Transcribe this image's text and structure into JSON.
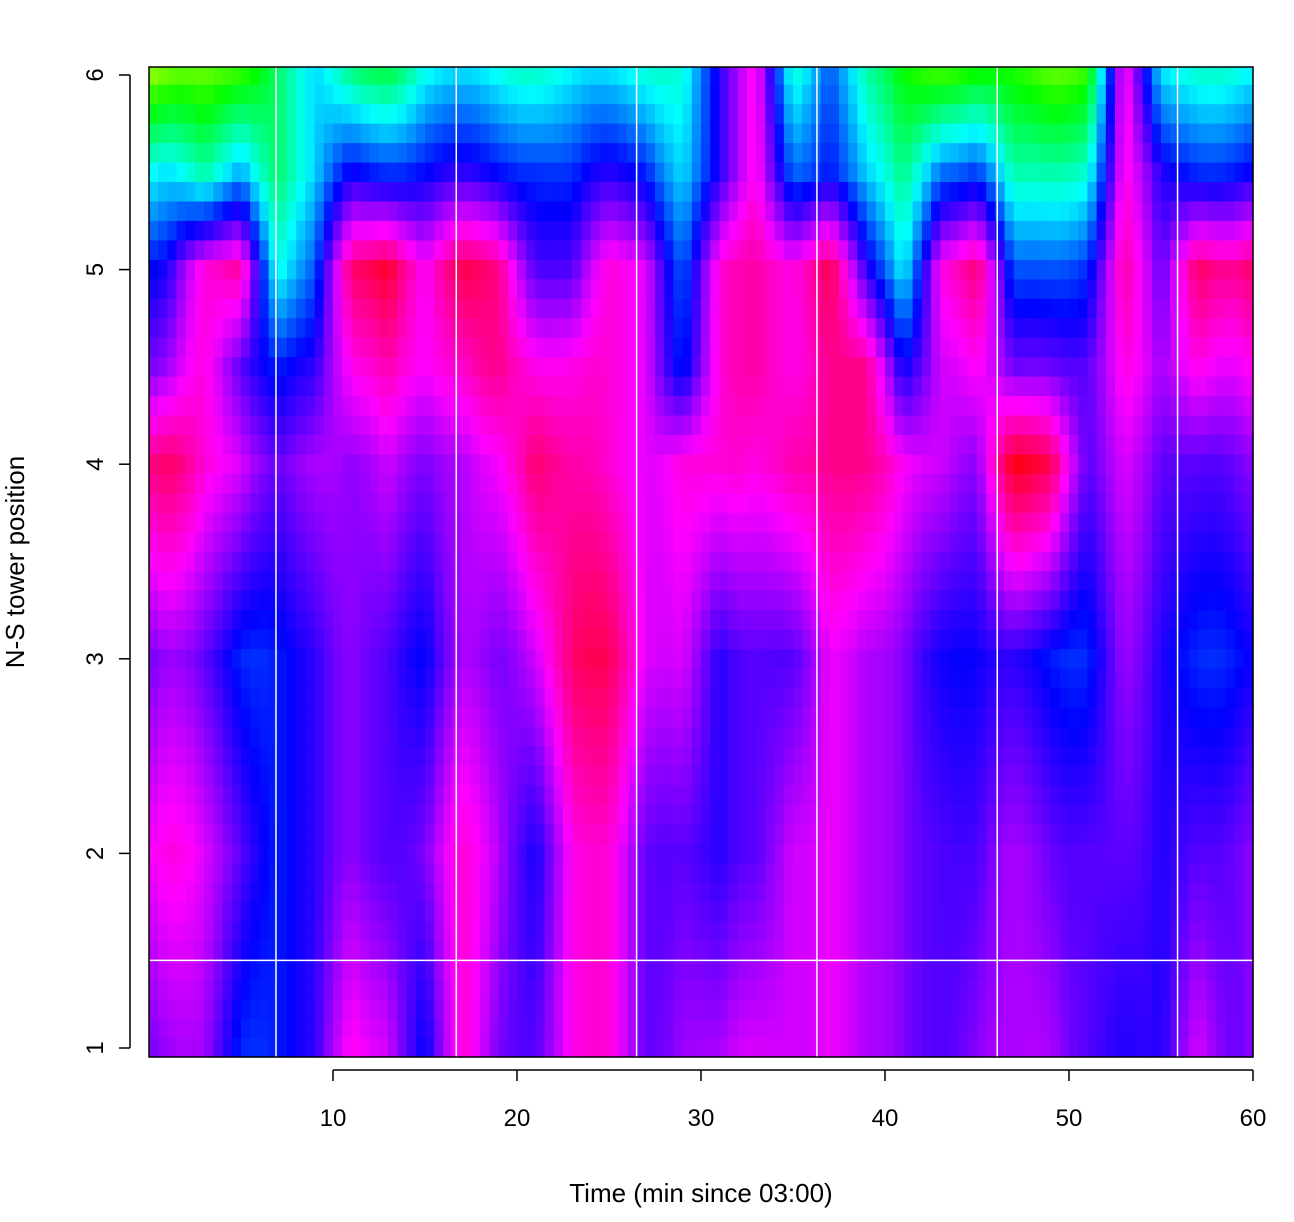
{
  "chart_data": {
    "type": "heatmap",
    "title": "",
    "xlabel": "Time (min since 03:00)",
    "ylabel": "N-S tower position",
    "xlim": [
      0,
      60
    ],
    "ylim": [
      0.95,
      6.05
    ],
    "x_ticks": [
      10,
      20,
      30,
      40,
      50,
      60
    ],
    "y_ticks": [
      1,
      2,
      3,
      4,
      5,
      6
    ],
    "color_scale": {
      "description": "hue index 0-10: 0 yellow, 2 green, 4 cyan, 6 blue, 8 magenta, 10 red",
      "min": 0,
      "max": 10
    },
    "x_centers": [
      1,
      3,
      5,
      7,
      9,
      11,
      13,
      15,
      17,
      19,
      21,
      23,
      25,
      27,
      29,
      31,
      33,
      35,
      37,
      39,
      41,
      43,
      45,
      47,
      49,
      51,
      53,
      55,
      57,
      59
    ],
    "y_levels": [
      6,
      5.5,
      5,
      4.5,
      4,
      3,
      2,
      1
    ],
    "z": [
      [
        1,
        4,
        6,
        7,
        9,
        7,
        8,
        7
      ],
      [
        1,
        3,
        8,
        8,
        8,
        6.5,
        7.5,
        7
      ],
      [
        2,
        5,
        9,
        7,
        8,
        6,
        7,
        6
      ],
      [
        3,
        3,
        4,
        6,
        7,
        6,
        6,
        6
      ],
      [
        4,
        4,
        5,
        6,
        7,
        6,
        6,
        6
      ],
      [
        3,
        6,
        9,
        8,
        7,
        7,
        7,
        8
      ],
      [
        3,
        6,
        10,
        9,
        8,
        7,
        7,
        8
      ],
      [
        4,
        6,
        8,
        8,
        7,
        6,
        7,
        6
      ],
      [
        4,
        6,
        9,
        8,
        7,
        7,
        8,
        8
      ],
      [
        4,
        6,
        9,
        9,
        8,
        7,
        7.5,
        7
      ],
      [
        4,
        6,
        7,
        8.5,
        9.5,
        8,
        6.5,
        7
      ],
      [
        4,
        5.5,
        6.5,
        8,
        8.5,
        9,
        8,
        8
      ],
      [
        4,
        6,
        8,
        8,
        8,
        9,
        8,
        8
      ],
      [
        4,
        6,
        8,
        8,
        8,
        8,
        7,
        7
      ],
      [
        4,
        4.5,
        5.5,
        6,
        8.5,
        8,
        7,
        7.5
      ],
      [
        6,
        6,
        8,
        8,
        8,
        6,
        6,
        7
      ],
      [
        8,
        8,
        8.5,
        8.5,
        8,
        6.5,
        6.5,
        7.5
      ],
      [
        4,
        5.5,
        8.5,
        8.5,
        9,
        7,
        8,
        8
      ],
      [
        5.5,
        6,
        9.5,
        9,
        9,
        8,
        8,
        8
      ],
      [
        3,
        4,
        6,
        8.5,
        8.5,
        7,
        7,
        7
      ],
      [
        2,
        3,
        4,
        6,
        8,
        7,
        7,
        7
      ],
      [
        2,
        5.5,
        8.5,
        8,
        8,
        6.5,
        7,
        7
      ],
      [
        2,
        5.5,
        9,
        8,
        7,
        6,
        6.5,
        7
      ],
      [
        1.5,
        3,
        5,
        6.5,
        9.5,
        6,
        7,
        7
      ],
      [
        1.5,
        3.5,
        5.5,
        7,
        9.5,
        6,
        7,
        7.5
      ],
      [
        2,
        4,
        6,
        7,
        7,
        6,
        7,
        7
      ],
      [
        8,
        8,
        8.5,
        8,
        7.5,
        7,
        6.5,
        6
      ],
      [
        4,
        6,
        6.5,
        7,
        6.5,
        6,
        6,
        6
      ],
      [
        4,
        6,
        9.5,
        8.5,
        7,
        6,
        7,
        8
      ],
      [
        4,
        6,
        9,
        8,
        7,
        6,
        7,
        7
      ]
    ],
    "reference_lines": {
      "vertical_x": [
        6.9,
        16.7,
        26.5,
        36.3,
        46.1,
        55.9
      ],
      "horizontal_y": [
        1.45
      ],
      "color": "#ffffff"
    },
    "grid": false,
    "legend": "none"
  }
}
